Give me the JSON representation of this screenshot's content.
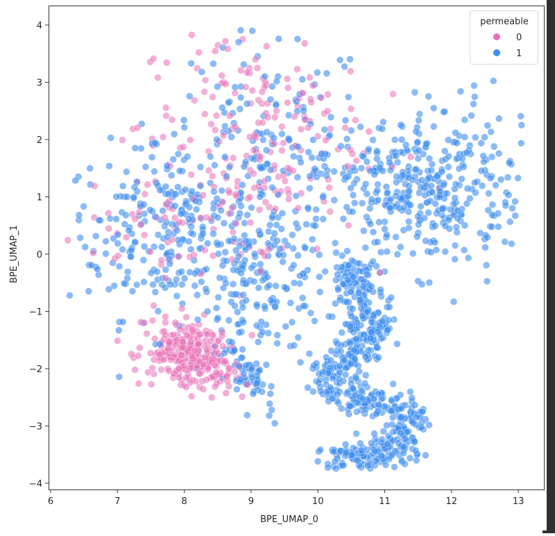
{
  "chart_data": {
    "type": "scatter",
    "title": "",
    "title_note": "title partially cut off above plot area",
    "xlabel": "BPE_UMAP_0",
    "ylabel": "BPE_UMAP_1",
    "xlim": [
      5.95,
      13.35
    ],
    "ylim": [
      -4.1,
      4.35
    ],
    "xticks": [
      6,
      7,
      8,
      9,
      10,
      11,
      12,
      13
    ],
    "yticks": [
      -4,
      -3,
      -2,
      -1,
      0,
      1,
      2,
      3,
      4
    ],
    "xtick_labels": [
      "6",
      "7",
      "8",
      "9",
      "10",
      "11",
      "12",
      "13"
    ],
    "ytick_labels": [
      "−4",
      "−3",
      "−2",
      "−1",
      "0",
      "1",
      "2",
      "3",
      "4"
    ],
    "grid": false,
    "legend": {
      "title": "permeable",
      "position": "upper right",
      "entries": [
        {
          "label": "0",
          "color": "#E970B6"
        },
        {
          "label": "1",
          "color": "#3D8EF0"
        }
      ]
    },
    "series": [
      {
        "name": "0",
        "color": "#E970B6",
        "alpha": 0.55,
        "clusters": [
          {
            "desc": "dense lower-left elongated cluster",
            "cx": 8.1,
            "cy": -1.75,
            "sx": 0.38,
            "sy": 0.28,
            "rot": -0.55,
            "n": 260
          },
          {
            "desc": "sparse upper-middle region",
            "cx": 9.0,
            "cy": 2.1,
            "sx": 0.85,
            "sy": 0.95,
            "rot": 0,
            "n": 190
          },
          {
            "desc": "scattered left region",
            "cx": 7.3,
            "cy": 0.4,
            "sx": 0.6,
            "sy": 0.45,
            "rot": 0,
            "n": 40
          },
          {
            "desc": "scattered middle",
            "cx": 8.8,
            "cy": 0.5,
            "sx": 0.5,
            "sy": 0.5,
            "rot": 0,
            "n": 30
          }
        ]
      },
      {
        "name": "1",
        "color": "#3D8EF0",
        "alpha": 0.6,
        "clusters": [
          {
            "desc": "broad left/middle region",
            "cx": 7.9,
            "cy": 0.4,
            "sx": 0.85,
            "sy": 0.75,
            "rot": 0,
            "n": 300
          },
          {
            "desc": "upper middle mixed region",
            "cx": 9.2,
            "cy": 2.0,
            "sx": 0.8,
            "sy": 0.9,
            "rot": 0,
            "n": 130
          },
          {
            "desc": "middle lower region",
            "cx": 9.2,
            "cy": -0.6,
            "sx": 0.45,
            "sy": 0.55,
            "rot": 0,
            "n": 130
          },
          {
            "desc": "upper right broad region",
            "cx": 11.5,
            "cy": 1.1,
            "sx": 0.85,
            "sy": 0.7,
            "rot": 0.35,
            "n": 420
          },
          {
            "desc": "tail near pink cluster",
            "cx": 8.95,
            "cy": -2.1,
            "sx": 0.12,
            "sy": 0.3,
            "rot": 0.5,
            "n": 60
          },
          {
            "desc": "S-shaped dense curve",
            "type": "path",
            "n": 620
          }
        ]
      }
    ],
    "s_curve_path": [
      [
        10.45,
        -0.2
      ],
      [
        10.55,
        -0.55
      ],
      [
        10.7,
        -0.9
      ],
      [
        10.8,
        -1.2
      ],
      [
        10.7,
        -1.5
      ],
      [
        10.55,
        -1.75
      ],
      [
        10.3,
        -2.0
      ],
      [
        10.15,
        -2.3
      ],
      [
        10.4,
        -2.45
      ],
      [
        10.8,
        -2.55
      ],
      [
        11.1,
        -2.65
      ],
      [
        11.35,
        -2.85
      ],
      [
        11.35,
        -3.15
      ],
      [
        11.1,
        -3.4
      ],
      [
        10.8,
        -3.55
      ],
      [
        10.5,
        -3.55
      ],
      [
        10.2,
        -3.55
      ]
    ]
  },
  "figure": {
    "background": "#ffffff",
    "frame_color": "#333333"
  }
}
